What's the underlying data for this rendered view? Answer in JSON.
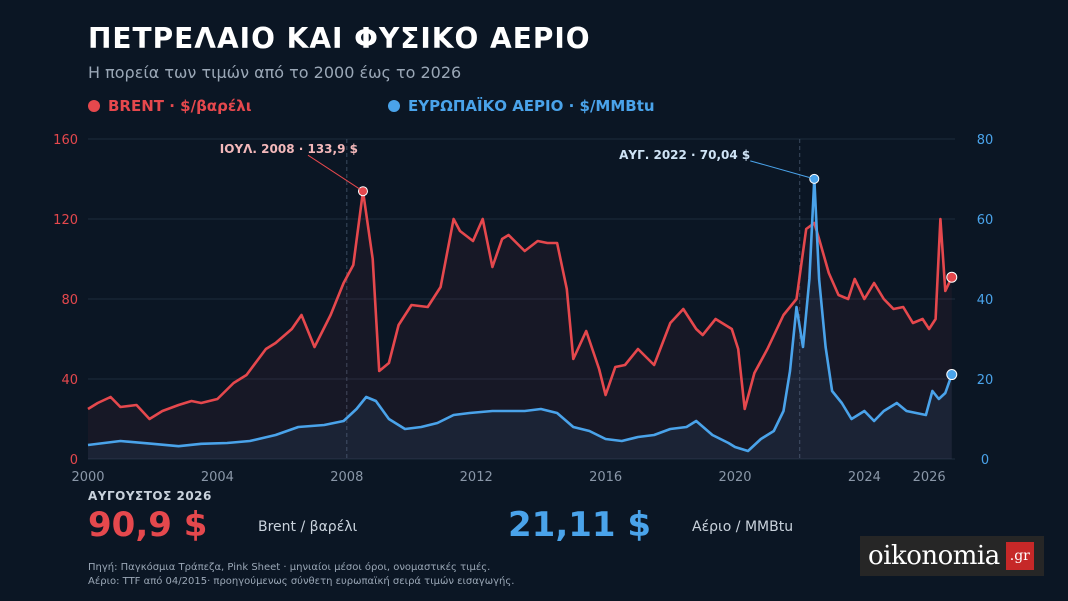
{
  "header": {
    "title": "ΠΕΤΡΕΛΑΙΟ ΚΑΙ ΦΥΣΙΚΟ ΑΕΡΙΟ",
    "subtitle": "Η πορεία των τιμών από το 2000 έως το 2026"
  },
  "legend": {
    "brent": "BRENT  ·  $/βαρέλι",
    "gas": "ΕΥΡΩΠΑΪΚΟ ΑΕΡΙΟ  ·  $/MMBtu"
  },
  "summary": {
    "label": "ΑΥΓΟΥΣΤΟΣ 2026",
    "brent_value": "90,9 $",
    "brent_unit": "Brent / βαρέλι",
    "gas_value": "21,11 $",
    "gas_unit": "Αέριο / MMBtu"
  },
  "source": {
    "line1": "Πηγή: Παγκόσμια Τράπεζα, Pink Sheet · μηνιαίοι μέσοι όροι, ονομαστικές τιμές.",
    "line2": "Αέριο: TTF από 04/2015· προηγούμενως σύνθετη ευρωπαϊκή σειρά τιμών εισαγωγής."
  },
  "logo": {
    "text": "oikonomia",
    "tld": ".gr"
  },
  "colors": {
    "brent": "#e5484d",
    "gas": "#4aa3ea",
    "grid": "#1e2c3d",
    "axis_text": "#8a97a8",
    "background": "#0b1624"
  },
  "chart_data": {
    "type": "line",
    "x_label": "",
    "xlim": [
      2000,
      2026.8
    ],
    "x_ticks": [
      "2000",
      "2004",
      "2008",
      "2012",
      "2016",
      "2020",
      "2024",
      "2026"
    ],
    "y_left": {
      "label": "",
      "lim": [
        0,
        160
      ],
      "ticks": [
        "0",
        "40",
        "80",
        "120",
        "160"
      ]
    },
    "y_right": {
      "label": "",
      "lim": [
        0,
        80
      ],
      "ticks": [
        "0",
        "20",
        "40",
        "60",
        "80"
      ]
    },
    "grid": true,
    "legend_position": "top-left",
    "series": [
      {
        "name": "BRENT",
        "axis": "left",
        "x": [
          2000,
          2000.3,
          2000.7,
          2001,
          2001.5,
          2001.9,
          2002.3,
          2002.8,
          2003.2,
          2003.5,
          2004,
          2004.5,
          2004.9,
          2005.5,
          2005.8,
          2006.3,
          2006.6,
          2007,
          2007.5,
          2007.9,
          2008.2,
          2008.5,
          2008.8,
          2009,
          2009.3,
          2009.6,
          2010,
          2010.5,
          2010.9,
          2011.3,
          2011.5,
          2011.9,
          2012.2,
          2012.5,
          2012.8,
          2013,
          2013.5,
          2013.9,
          2014.2,
          2014.5,
          2014.8,
          2015,
          2015.4,
          2015.8,
          2016,
          2016.3,
          2016.6,
          2017,
          2017.5,
          2018,
          2018.4,
          2018.8,
          2019,
          2019.4,
          2019.9,
          2020.1,
          2020.3,
          2020.6,
          2021,
          2021.5,
          2021.9,
          2022.2,
          2022.45,
          2022.6,
          2022.9,
          2023.2,
          2023.5,
          2023.7,
          2024.0,
          2024.3,
          2024.6,
          2024.9,
          2025.2,
          2025.5,
          2025.8,
          2026.0,
          2026.2,
          2026.35,
          2026.5,
          2026.7
        ],
        "values": [
          25,
          28,
          31,
          26,
          27,
          20,
          24,
          27,
          29,
          28,
          30,
          38,
          42,
          55,
          58,
          65,
          72,
          56,
          72,
          88,
          97,
          133.9,
          100,
          44,
          48,
          67,
          77,
          76,
          86,
          120,
          114,
          109,
          120,
          96,
          110,
          112,
          104,
          109,
          108,
          108,
          85,
          50,
          64,
          45,
          32,
          46,
          47,
          55,
          47,
          68,
          75,
          65,
          62,
          70,
          65,
          55,
          25,
          43,
          55,
          72,
          80,
          115,
          118,
          110,
          93,
          82,
          80,
          90,
          80,
          88,
          80,
          75,
          76,
          68,
          70,
          65,
          70,
          120,
          84,
          90.9
        ]
      },
      {
        "name": "ΕΥΡΩΠΑΪΚΟ ΑΕΡΙΟ",
        "axis": "right",
        "x": [
          2000,
          2001,
          2002,
          2002.8,
          2003.5,
          2004.3,
          2005,
          2005.8,
          2006.5,
          2007.3,
          2007.9,
          2008.3,
          2008.6,
          2008.9,
          2009.3,
          2009.8,
          2010.3,
          2010.8,
          2011.3,
          2011.8,
          2012.5,
          2013,
          2013.5,
          2014,
          2014.5,
          2015,
          2015.5,
          2016,
          2016.5,
          2017,
          2017.5,
          2018,
          2018.5,
          2018.8,
          2019.3,
          2019.8,
          2020,
          2020.4,
          2020.8,
          2021.2,
          2021.5,
          2021.7,
          2021.9,
          2022.1,
          2022.3,
          2022.45,
          2022.6,
          2022.8,
          2023,
          2023.3,
          2023.6,
          2024,
          2024.3,
          2024.6,
          2025,
          2025.3,
          2025.6,
          2025.9,
          2026.1,
          2026.3,
          2026.5,
          2026.7
        ],
        "values": [
          3.5,
          4.5,
          3.8,
          3.2,
          3.8,
          4.0,
          4.5,
          6.0,
          8.0,
          8.5,
          9.5,
          12.5,
          15.5,
          14.5,
          10.0,
          7.5,
          8.0,
          9.0,
          11.0,
          11.5,
          12.0,
          12.0,
          12.0,
          12.5,
          11.5,
          8.0,
          7.0,
          5.0,
          4.5,
          5.5,
          6.0,
          7.5,
          8.0,
          9.5,
          6.0,
          4.0,
          3.0,
          2.0,
          5.0,
          7.0,
          12.0,
          22.0,
          38.0,
          28.0,
          45.0,
          70.04,
          45.0,
          28.0,
          17.0,
          14.0,
          10.0,
          12.0,
          9.5,
          12.0,
          14.0,
          12.0,
          11.5,
          11.0,
          17.0,
          15.0,
          16.5,
          21.11
        ]
      }
    ],
    "annotations": [
      {
        "label": "ΙΟΥΛ. 2008 · 133,9 $",
        "x": 2008.5,
        "y": 133.9,
        "axis": "left"
      },
      {
        "label": "ΑΥΓ. 2022 · 70,04 $",
        "x": 2022.45,
        "y": 70.04,
        "axis": "right"
      }
    ],
    "vertical_markers_x": [
      2008,
      2022
    ]
  }
}
